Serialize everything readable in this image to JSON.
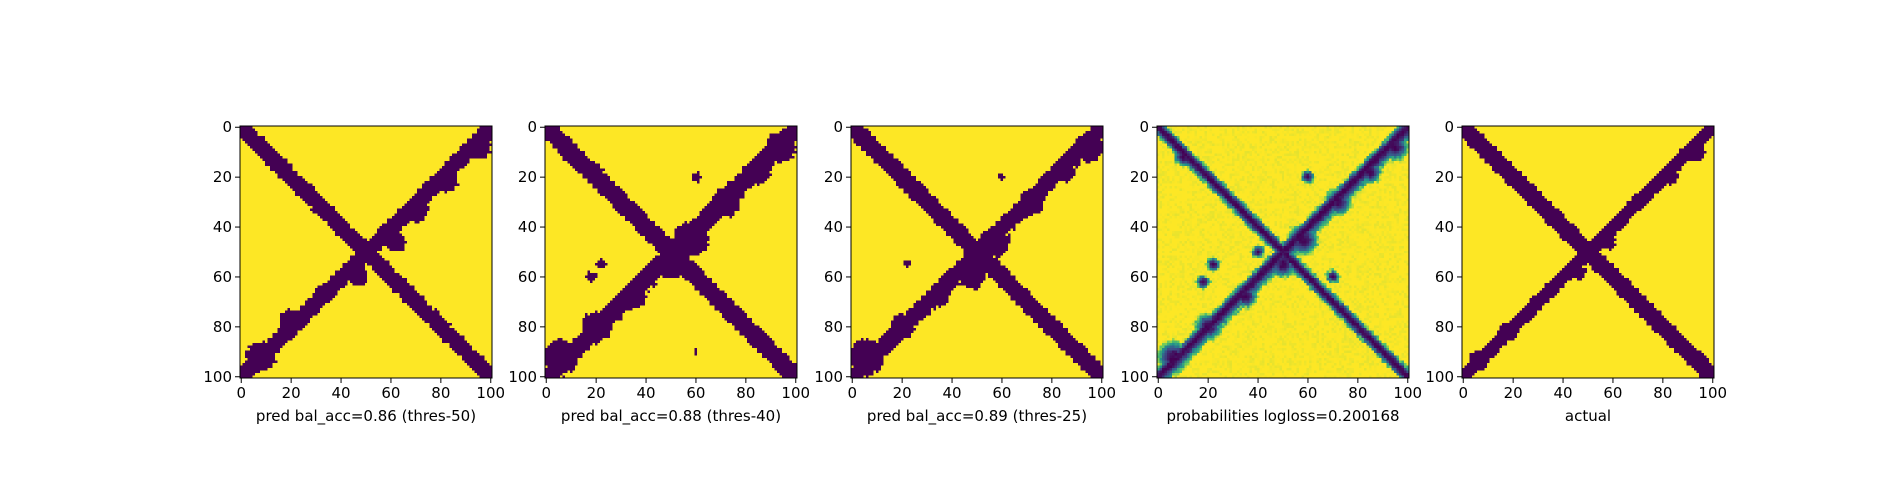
{
  "chart_data": [
    {
      "type": "heatmap",
      "title": "",
      "xlabel": "pred bal_acc=0.86 (thres-50)",
      "ylabel": "",
      "xlim": [
        0,
        101
      ],
      "ylim": [
        101,
        0
      ],
      "xticks": [
        "0",
        "20",
        "40",
        "60",
        "80",
        "100"
      ],
      "yticks": [
        "0",
        "20",
        "40",
        "60",
        "80",
        "100"
      ],
      "colormap": "viridis",
      "binary": true,
      "pattern": {
        "diag_width": 3.2,
        "anti_width": 3.4,
        "anti_extra": 1.4,
        "noise": 0.45,
        "blobs": [
          [
            95,
            8,
            5
          ],
          [
            83,
            22,
            4
          ],
          [
            70,
            33,
            5
          ],
          [
            62,
            46,
            4
          ],
          [
            47,
            60,
            4
          ],
          [
            33,
            67,
            4
          ],
          [
            20,
            78,
            5
          ],
          [
            8,
            92,
            6
          ]
        ]
      }
    },
    {
      "type": "heatmap",
      "title": "",
      "xlabel": "pred bal_acc=0.88 (thres-40)",
      "ylabel": "",
      "xlim": [
        0,
        101
      ],
      "ylim": [
        101,
        0
      ],
      "xticks": [
        "0",
        "20",
        "40",
        "60",
        "80",
        "100"
      ],
      "yticks": [
        "0",
        "20",
        "40",
        "60",
        "80",
        "100"
      ],
      "colormap": "viridis",
      "binary": true,
      "pattern": {
        "diag_width": 3.6,
        "anti_width": 4.2,
        "anti_extra": 2.4,
        "noise": 0.55,
        "blobs": [
          [
            94,
            8,
            6
          ],
          [
            85,
            18,
            5
          ],
          [
            72,
            30,
            6
          ],
          [
            58,
            45,
            7
          ],
          [
            50,
            55,
            6
          ],
          [
            35,
            68,
            5
          ],
          [
            20,
            80,
            6
          ],
          [
            6,
            92,
            7
          ],
          [
            10,
            10,
            4
          ],
          [
            20,
            18,
            3
          ],
          [
            60,
            20,
            2
          ],
          [
            22,
            55,
            2
          ],
          [
            18,
            60,
            2
          ],
          [
            60,
            90,
            1
          ]
        ]
      }
    },
    {
      "type": "heatmap",
      "title": "",
      "xlabel": "pred bal_acc=0.89 (thres-25)",
      "ylabel": "",
      "xlim": [
        0,
        101
      ],
      "ylim": [
        101,
        0
      ],
      "xticks": [
        "0",
        "20",
        "40",
        "60",
        "80",
        "100"
      ],
      "yticks": [
        "0",
        "20",
        "40",
        "60",
        "80",
        "100"
      ],
      "colormap": "viridis",
      "binary": true,
      "pattern": {
        "diag_width": 3.4,
        "anti_width": 3.8,
        "anti_extra": 2.0,
        "noise": 0.5,
        "blobs": [
          [
            95,
            8,
            6
          ],
          [
            85,
            18,
            4
          ],
          [
            72,
            30,
            5
          ],
          [
            57,
            46,
            6
          ],
          [
            48,
            60,
            5
          ],
          [
            35,
            68,
            4
          ],
          [
            20,
            80,
            5
          ],
          [
            6,
            92,
            7
          ],
          [
            60,
            20,
            1.5
          ],
          [
            22,
            55,
            1.5
          ]
        ]
      }
    },
    {
      "type": "heatmap",
      "title": "",
      "xlabel": "probabilities logloss=0.200168",
      "ylabel": "",
      "xlim": [
        0,
        101
      ],
      "ylim": [
        101,
        0
      ],
      "xticks": [
        "0",
        "20",
        "40",
        "60",
        "80",
        "100"
      ],
      "yticks": [
        "0",
        "20",
        "40",
        "60",
        "80",
        "100"
      ],
      "colormap": "viridis",
      "binary": false,
      "pattern": {
        "diag_width": 3.0,
        "anti_width": 4.5,
        "anti_extra": 3.0,
        "noise": 0.6,
        "blobs": [
          [
            95,
            8,
            6
          ],
          [
            85,
            18,
            5
          ],
          [
            72,
            30,
            6
          ],
          [
            58,
            45,
            7
          ],
          [
            50,
            55,
            6
          ],
          [
            35,
            68,
            5
          ],
          [
            20,
            80,
            6
          ],
          [
            6,
            92,
            7
          ],
          [
            10,
            12,
            4
          ],
          [
            20,
            20,
            3
          ],
          [
            60,
            20,
            3
          ],
          [
            22,
            55,
            3
          ],
          [
            18,
            62,
            3
          ],
          [
            70,
            60,
            3
          ],
          [
            40,
            50,
            3
          ]
        ]
      }
    },
    {
      "type": "heatmap",
      "title": "",
      "xlabel": "actual",
      "ylabel": "",
      "xlim": [
        0,
        101
      ],
      "ylim": [
        101,
        0
      ],
      "xticks": [
        "0",
        "20",
        "40",
        "60",
        "80",
        "100"
      ],
      "yticks": [
        "0",
        "20",
        "40",
        "60",
        "80",
        "100"
      ],
      "colormap": "viridis",
      "binary": true,
      "pattern": {
        "diag_width": 3.4,
        "anti_width": 3.0,
        "anti_extra": 1.2,
        "noise": 0.4,
        "blobs": [
          [
            93,
            10,
            4
          ],
          [
            83,
            20,
            3
          ],
          [
            70,
            30,
            3
          ],
          [
            58,
            46,
            3
          ],
          [
            46,
            58,
            3
          ],
          [
            42,
            42,
            3
          ],
          [
            30,
            70,
            3
          ],
          [
            18,
            82,
            4
          ],
          [
            6,
            94,
            4
          ]
        ]
      }
    }
  ],
  "colors": {
    "low": "#440154",
    "mid1": "#31688e",
    "mid2": "#35b779",
    "high": "#fde725"
  }
}
